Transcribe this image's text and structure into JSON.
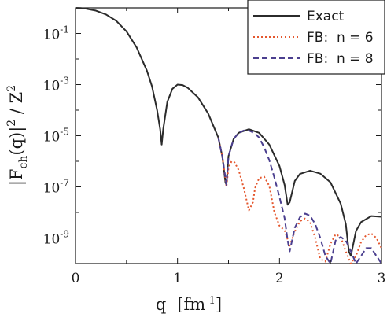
{
  "chart_data": {
    "type": "line",
    "xlabel": "q  [fm^-1]",
    "xlabel_parts": {
      "base": "q",
      "bracket_open": "[fm",
      "sup": "-1",
      "bracket_close": "]"
    },
    "ylabel_parts": {
      "l1": "|F",
      "sub": "ch",
      "l2": "(q)|",
      "sup1": "2",
      "l3": " / Z",
      "sup2": "2"
    },
    "xlim": [
      0,
      3
    ],
    "ylim": [
      1e-10,
      1
    ],
    "yscale": "log",
    "x_ticks": [
      {
        "value": 0,
        "label": "0"
      },
      {
        "value": 1,
        "label": "1"
      },
      {
        "value": 2,
        "label": "2"
      },
      {
        "value": 3,
        "label": "3"
      }
    ],
    "y_ticks": [
      {
        "value": 0.1,
        "base": "10",
        "exp": "-1"
      },
      {
        "value": 0.001,
        "base": "10",
        "exp": "-3"
      },
      {
        "value": 1e-05,
        "base": "10",
        "exp": "-5"
      },
      {
        "value": 1e-07,
        "base": "10",
        "exp": "-7"
      },
      {
        "value": 1e-09,
        "base": "10",
        "exp": "-9"
      }
    ],
    "grid": false,
    "legend_position": "top-right",
    "series": [
      {
        "name": "Exact",
        "color": "#2b2b2b",
        "dash": "solid",
        "x": [
          0,
          0.05,
          0.1,
          0.2,
          0.3,
          0.4,
          0.5,
          0.6,
          0.7,
          0.75,
          0.8,
          0.83,
          0.845,
          0.86,
          0.9,
          0.95,
          1.0,
          1.05,
          1.1,
          1.2,
          1.3,
          1.4,
          1.44,
          1.47,
          1.48,
          1.5,
          1.55,
          1.6,
          1.7,
          1.8,
          1.9,
          2.0,
          2.05,
          2.08,
          2.1,
          2.15,
          2.2,
          2.3,
          2.4,
          2.5,
          2.6,
          2.65,
          2.68,
          2.7,
          2.75,
          2.8,
          2.9,
          3.0
        ],
        "y": [
          1.0,
          0.98,
          0.93,
          0.78,
          0.55,
          0.31,
          0.12,
          0.028,
          0.0035,
          0.00085,
          0.0001,
          1.8e-05,
          4.5e-06,
          1.8e-05,
          0.00021,
          0.00068,
          0.001,
          0.00096,
          0.00075,
          0.00032,
          7.5e-05,
          8.5e-06,
          1.5e-06,
          1.5e-07,
          1.2e-07,
          1.6e-06,
          7.4e-06,
          1.3e-05,
          1.8e-05,
          1.3e-05,
          4.5e-06,
          6.5e-07,
          1.2e-07,
          2e-08,
          2.5e-08,
          1.7e-07,
          3.2e-07,
          4.3e-07,
          3.3e-07,
          1.5e-07,
          2.2e-08,
          3.5e-09,
          3e-10,
          2e-10,
          1.9e-09,
          4.2e-09,
          7.2e-09,
          6.8e-09
        ]
      },
      {
        "name": "FB:  n = 6",
        "color": "#e4572e",
        "dash": "dot",
        "x": [
          1.4,
          1.44,
          1.48,
          1.5,
          1.53,
          1.56,
          1.6,
          1.65,
          1.7,
          1.74,
          1.76,
          1.8,
          1.85,
          1.9,
          1.95,
          2.0,
          2.05,
          2.1,
          2.15,
          2.2,
          2.25,
          2.3,
          2.35,
          2.4,
          2.45,
          2.5,
          2.55,
          2.6,
          2.65,
          2.7,
          2.75,
          2.8,
          2.85,
          2.9,
          2.95,
          3.0
        ],
        "y": [
          8.5e-06,
          1.5e-06,
          1e-07,
          5.5e-07,
          1e-06,
          9e-07,
          4.5e-07,
          9e-08,
          1.2e-08,
          2.5e-08,
          9e-08,
          2.2e-07,
          2.5e-07,
          1.1e-07,
          1e-08,
          3e-09,
          2e-09,
          5e-10,
          1.8e-09,
          4.5e-09,
          5.8e-09,
          4.2e-09,
          1e-09,
          1.5e-10,
          1.2e-10,
          6e-10,
          1.4e-09,
          1.1e-09,
          3e-10,
          1e-10,
          2e-10,
          7e-10,
          1.3e-09,
          1.5e-09,
          1e-09,
          4e-10
        ]
      },
      {
        "name": "FB:  n = 8",
        "color": "#4b3f8f",
        "dash": "dash",
        "x": [
          1.4,
          1.44,
          1.48,
          1.5,
          1.55,
          1.6,
          1.65,
          1.7,
          1.75,
          1.8,
          1.85,
          1.9,
          1.95,
          2.0,
          2.05,
          2.08,
          2.1,
          2.15,
          2.2,
          2.25,
          2.3,
          2.35,
          2.4,
          2.45,
          2.5,
          2.55,
          2.6,
          2.65,
          2.7,
          2.75,
          2.8,
          2.85,
          2.9,
          2.95,
          3.0
        ],
        "y": [
          8.5e-06,
          1.5e-06,
          1.2e-07,
          1.6e-06,
          7.4e-06,
          1.3e-05,
          1.6e-05,
          1.6e-05,
          1.3e-05,
          8.5e-06,
          3.5e-06,
          1.1e-06,
          2.3e-07,
          4e-08,
          6e-09,
          8e-10,
          3e-10,
          2.5e-09,
          6.5e-09,
          9e-09,
          7.5e-09,
          3.5e-09,
          1e-09,
          2e-10,
          1e-10,
          8e-10,
          1.1e-09,
          8e-10,
          3e-10,
          1e-10,
          2e-10,
          4e-10,
          4e-10,
          2e-10,
          1e-10
        ]
      }
    ]
  }
}
